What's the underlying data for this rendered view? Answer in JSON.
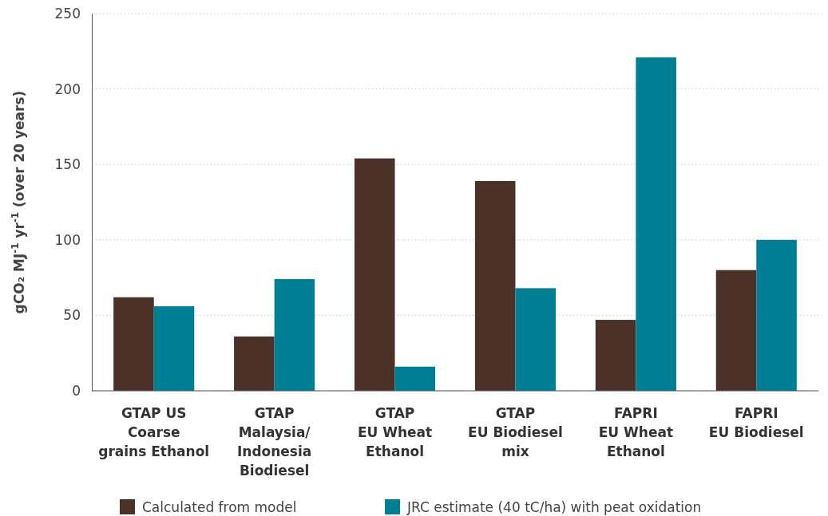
{
  "chart_data": {
    "type": "bar",
    "ylabel": "gCO₂ MJ$^{-1}$ yr$^{-1}$ (over 20 years)",
    "categories": [
      "GTAP US\nCoarse\ngrains Ethanol",
      "GTAP\nMalaysia/\nIndonesia\nBiodiesel",
      "GTAP\nEU Wheat\nEthanol",
      "GTAP\nEU Biodiesel\nmix",
      "FAPRI\nEU Wheat\nEthanol",
      "FAPRI\nEU Biodiesel"
    ],
    "series": [
      {
        "name": "Calculated from model",
        "color": "#4b3128",
        "values": [
          62,
          36,
          154,
          139,
          47,
          80
        ]
      },
      {
        "name": "JRC estimate (40 tC/ha) with peat oxidation",
        "color": "#007f94",
        "values": [
          56,
          74,
          16,
          68,
          221,
          100
        ]
      }
    ],
    "ylim": [
      0,
      250
    ],
    "yticks": [
      0,
      50,
      100,
      150,
      200,
      250
    ],
    "grid": "y",
    "legend": "bottom"
  }
}
